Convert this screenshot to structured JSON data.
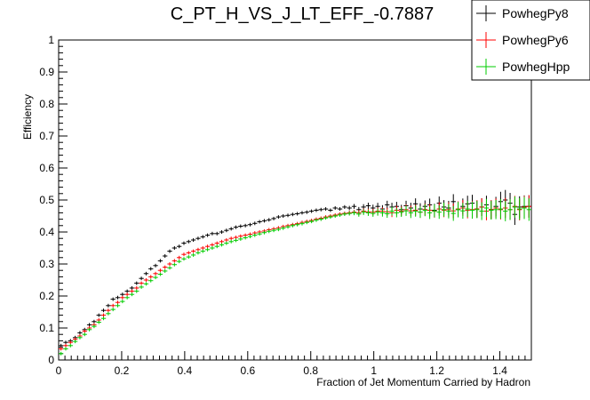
{
  "chart_data": {
    "type": "scatter",
    "title": "C_PT_H_VS_J_LT_EFF_-0.7887",
    "xlabel": "Fraction of Jet Momentum Carried by Hadron",
    "ylabel": "Efficiency",
    "xlim": [
      0,
      1.5
    ],
    "ylim": [
      0,
      1
    ],
    "x_ticks": [
      "0",
      "0.2",
      "0.4",
      "0.6",
      "0.8",
      "1",
      "1.2",
      "1.4"
    ],
    "y_ticks": [
      "0",
      "0.1",
      "0.2",
      "0.3",
      "0.4",
      "0.5",
      "0.6",
      "0.7",
      "0.8",
      "0.9",
      "1"
    ],
    "legend_position": "top-right",
    "grid": false,
    "x": [
      0.0075,
      0.0225,
      0.0375,
      0.0525,
      0.0675,
      0.0825,
      0.0975,
      0.1125,
      0.1275,
      0.1425,
      0.1575,
      0.1725,
      0.1875,
      0.2025,
      0.2175,
      0.2325,
      0.2475,
      0.2625,
      0.2775,
      0.2925,
      0.3075,
      0.3225,
      0.3375,
      0.3525,
      0.3675,
      0.3825,
      0.3975,
      0.4125,
      0.4275,
      0.4425,
      0.4575,
      0.4725,
      0.4875,
      0.5025,
      0.5175,
      0.5325,
      0.5475,
      0.5625,
      0.5775,
      0.5925,
      0.6075,
      0.6225,
      0.6375,
      0.6525,
      0.6675,
      0.6825,
      0.6975,
      0.7125,
      0.7275,
      0.7425,
      0.7575,
      0.7725,
      0.7875,
      0.8025,
      0.8175,
      0.8325,
      0.8475,
      0.8625,
      0.8775,
      0.8925,
      0.9075,
      0.9225,
      0.9375,
      0.9525,
      0.9675,
      0.9825,
      0.9975,
      1.0125,
      1.0275,
      1.0425,
      1.0575,
      1.0725,
      1.0875,
      1.1025,
      1.1175,
      1.1325,
      1.1475,
      1.1625,
      1.1775,
      1.1925,
      1.2075,
      1.2225,
      1.2375,
      1.2525,
      1.2675,
      1.2825,
      1.2975,
      1.3125,
      1.3275,
      1.3425,
      1.3575,
      1.3725,
      1.3875,
      1.4025,
      1.4175,
      1.4325,
      1.4475,
      1.4625,
      1.4775,
      1.4925
    ],
    "series": [
      {
        "name": "PowhegPy8",
        "color": "#000000",
        "values": [
          0.045,
          0.055,
          0.06,
          0.07,
          0.085,
          0.095,
          0.11,
          0.12,
          0.14,
          0.155,
          0.17,
          0.19,
          0.195,
          0.205,
          0.215,
          0.225,
          0.24,
          0.255,
          0.27,
          0.285,
          0.295,
          0.31,
          0.325,
          0.34,
          0.35,
          0.355,
          0.365,
          0.37,
          0.375,
          0.38,
          0.385,
          0.39,
          0.395,
          0.395,
          0.4,
          0.405,
          0.41,
          0.415,
          0.418,
          0.42,
          0.423,
          0.427,
          0.432,
          0.435,
          0.438,
          0.442,
          0.447,
          0.45,
          0.452,
          0.455,
          0.457,
          0.46,
          0.462,
          0.465,
          0.468,
          0.47,
          0.472,
          0.468,
          0.475,
          0.472,
          0.478,
          0.475,
          0.48,
          0.47,
          0.478,
          0.482,
          0.475,
          0.48,
          0.472,
          0.485,
          0.478,
          0.48,
          0.47,
          0.482,
          0.475,
          0.488,
          0.472,
          0.48,
          0.485,
          0.468,
          0.49,
          0.478,
          0.475,
          0.495,
          0.47,
          0.48,
          0.488,
          0.49,
          0.472,
          0.478,
          0.485,
          0.47,
          0.48,
          0.495,
          0.5,
          0.49,
          0.455,
          0.478,
          0.48,
          0.48
        ]
      },
      {
        "name": "PowhegPy6",
        "color": "#ff0000",
        "values": [
          0.035,
          0.045,
          0.055,
          0.065,
          0.075,
          0.09,
          0.1,
          0.11,
          0.125,
          0.14,
          0.155,
          0.17,
          0.18,
          0.195,
          0.205,
          0.215,
          0.225,
          0.24,
          0.25,
          0.26,
          0.27,
          0.28,
          0.29,
          0.3,
          0.31,
          0.32,
          0.33,
          0.335,
          0.34,
          0.345,
          0.35,
          0.355,
          0.36,
          0.365,
          0.37,
          0.375,
          0.38,
          0.383,
          0.387,
          0.39,
          0.393,
          0.397,
          0.4,
          0.403,
          0.407,
          0.41,
          0.413,
          0.417,
          0.42,
          0.423,
          0.426,
          0.43,
          0.433,
          0.436,
          0.44,
          0.443,
          0.447,
          0.45,
          0.453,
          0.456,
          0.458,
          0.46,
          0.462,
          0.46,
          0.465,
          0.463,
          0.462,
          0.465,
          0.465,
          0.463,
          0.46,
          0.468,
          0.465,
          0.47,
          0.466,
          0.468,
          0.462,
          0.47,
          0.468,
          0.465,
          0.472,
          0.468,
          0.47,
          0.466,
          0.472,
          0.475,
          0.468,
          0.47,
          0.472,
          0.478,
          0.465,
          0.47,
          0.475,
          0.47,
          0.475,
          0.47,
          0.48,
          0.47,
          0.478,
          0.48
        ]
      },
      {
        "name": "PowhegHpp",
        "color": "#00cc00",
        "values": [
          0.02,
          0.035,
          0.045,
          0.058,
          0.07,
          0.08,
          0.095,
          0.105,
          0.118,
          0.13,
          0.145,
          0.158,
          0.17,
          0.183,
          0.195,
          0.205,
          0.215,
          0.228,
          0.238,
          0.248,
          0.258,
          0.268,
          0.278,
          0.288,
          0.298,
          0.308,
          0.316,
          0.322,
          0.328,
          0.335,
          0.34,
          0.345,
          0.35,
          0.355,
          0.36,
          0.365,
          0.37,
          0.374,
          0.378,
          0.382,
          0.386,
          0.39,
          0.394,
          0.398,
          0.402,
          0.405,
          0.408,
          0.412,
          0.416,
          0.42,
          0.423,
          0.426,
          0.43,
          0.433,
          0.437,
          0.44,
          0.444,
          0.447,
          0.45,
          0.453,
          0.456,
          0.458,
          0.46,
          0.456,
          0.462,
          0.46,
          0.458,
          0.462,
          0.46,
          0.457,
          0.465,
          0.46,
          0.462,
          0.466,
          0.46,
          0.465,
          0.462,
          0.468,
          0.46,
          0.466,
          0.462,
          0.47,
          0.465,
          0.458,
          0.47,
          0.466,
          0.472,
          0.468,
          0.47,
          0.465,
          0.475,
          0.468,
          0.47,
          0.472,
          0.465,
          0.47,
          0.478,
          0.472,
          0.475,
          0.47
        ]
      }
    ]
  }
}
